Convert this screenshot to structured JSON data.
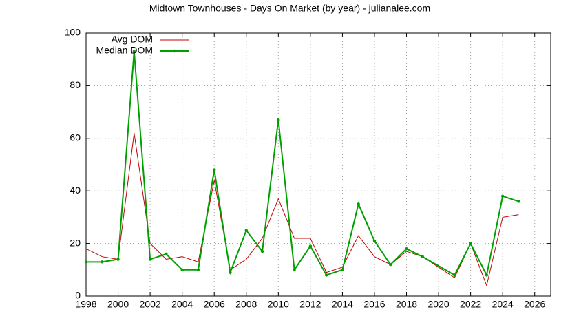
{
  "chart_data": {
    "type": "line",
    "title": "Midtown Townhouses - Days On Market (by year) - julianalee.com",
    "x": [
      1998,
      1999,
      2000,
      2001,
      2002,
      2003,
      2004,
      2005,
      2006,
      2007,
      2008,
      2009,
      2010,
      2011,
      2012,
      2013,
      2014,
      2015,
      2016,
      2017,
      2018,
      2019,
      2021,
      2022,
      2023,
      2024,
      2025
    ],
    "series": [
      {
        "name": "Avg DOM",
        "color": "#c00000",
        "marker": false,
        "values": [
          18,
          15,
          14,
          62,
          20,
          14,
          15,
          13,
          44,
          10,
          14,
          22,
          37,
          22,
          22,
          9,
          11,
          23,
          15,
          12,
          17,
          15,
          7,
          20,
          4,
          30,
          31
        ]
      },
      {
        "name": "Median DOM",
        "color": "#00a000",
        "marker": true,
        "values": [
          13,
          13,
          14,
          93,
          14,
          16,
          10,
          10,
          48,
          9,
          25,
          17,
          67,
          10,
          19,
          8,
          10,
          35,
          21,
          12,
          18,
          15,
          8,
          20,
          8,
          38,
          36
        ]
      }
    ],
    "xlim": [
      1998,
      2027
    ],
    "xticks": [
      1998,
      2000,
      2002,
      2004,
      2006,
      2008,
      2010,
      2012,
      2014,
      2016,
      2018,
      2020,
      2022,
      2024,
      2026
    ],
    "ylim": [
      0,
      100
    ],
    "yticks": [
      0,
      20,
      40,
      60,
      80,
      100
    ],
    "grid": true,
    "legend": "top-left"
  }
}
